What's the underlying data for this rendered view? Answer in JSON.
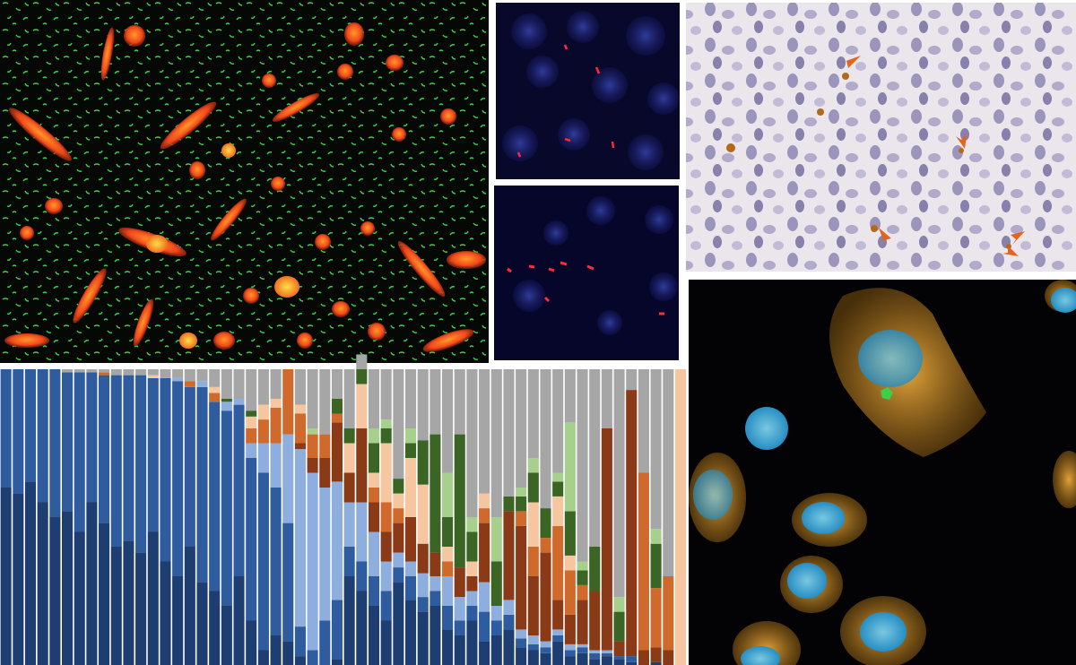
{
  "chart_data": {
    "type": "stacked-bar",
    "categories": [
      null,
      null,
      null,
      null,
      null,
      null,
      null,
      null,
      null,
      null,
      null,
      null,
      null,
      null,
      null,
      null,
      null,
      null,
      null,
      null,
      null,
      null,
      null,
      null,
      null,
      null,
      null,
      null,
      null,
      null,
      null,
      null,
      null,
      null,
      null,
      null,
      null,
      null,
      null,
      null,
      null,
      null,
      null,
      null,
      null,
      null,
      null,
      null,
      null,
      null,
      null,
      null,
      null,
      null,
      null,
      null
    ],
    "ylim": [
      0,
      100
    ],
    "series": [
      {
        "color": "#1e3d70",
        "values": [
          60,
          58,
          62,
          55,
          50,
          52,
          45,
          55,
          48,
          40,
          42,
          38,
          45,
          35,
          30,
          40,
          28,
          25,
          20,
          30,
          15,
          5,
          10,
          8,
          3,
          0,
          0,
          2,
          30,
          25,
          20,
          15,
          28,
          22,
          18,
          20,
          12,
          10,
          15,
          8,
          10,
          12,
          6,
          5,
          4,
          8,
          3,
          4,
          2,
          3,
          2,
          1,
          0,
          1,
          0,
          0
        ]
      },
      {
        "color": "#2f5c9e",
        "values": [
          40,
          42,
          38,
          45,
          50,
          47,
          54,
          44,
          50,
          58,
          56,
          60,
          52,
          62,
          66,
          54,
          66,
          64,
          66,
          58,
          55,
          60,
          50,
          40,
          10,
          5,
          15,
          20,
          10,
          10,
          10,
          10,
          5,
          8,
          5,
          5,
          8,
          5,
          5,
          10,
          5,
          5,
          3,
          2,
          2,
          2,
          2,
          2,
          2,
          1,
          1,
          2,
          0,
          0,
          0,
          0
        ]
      },
      {
        "color": "#8eaedd",
        "values": [
          0,
          0,
          0,
          0,
          0,
          0,
          0,
          0,
          0,
          0,
          0,
          0,
          0,
          0,
          1,
          0,
          2,
          0,
          3,
          2,
          5,
          10,
          15,
          30,
          60,
          60,
          45,
          40,
          15,
          20,
          15,
          10,
          5,
          5,
          8,
          5,
          10,
          8,
          5,
          10,
          5,
          5,
          3,
          3,
          2,
          2,
          2,
          1,
          1,
          1,
          0,
          0,
          0,
          0,
          0,
          0
        ]
      },
      {
        "color": "#8a3a16",
        "values": [
          0,
          0,
          0,
          0,
          0,
          0,
          0,
          0,
          0,
          0,
          0,
          0,
          0,
          0,
          0,
          0,
          0,
          0,
          0,
          0,
          0,
          0,
          0,
          0,
          2,
          5,
          10,
          20,
          10,
          25,
          10,
          10,
          10,
          15,
          10,
          8,
          0,
          10,
          5,
          20,
          0,
          30,
          35,
          20,
          30,
          10,
          10,
          15,
          20,
          75,
          5,
          90,
          5,
          5,
          5,
          0
        ]
      },
      {
        "color": "#d06a2c",
        "values": [
          0,
          0,
          0,
          0,
          0,
          0,
          0,
          0,
          1,
          0,
          0,
          0,
          0,
          0,
          0,
          2,
          0,
          3,
          0,
          0,
          5,
          8,
          12,
          22,
          10,
          8,
          8,
          3,
          0,
          0,
          5,
          10,
          5,
          0,
          0,
          0,
          5,
          0,
          0,
          5,
          0,
          0,
          5,
          10,
          5,
          25,
          15,
          5,
          0,
          0,
          0,
          0,
          60,
          20,
          25,
          0
        ]
      },
      {
        "color": "#f5c6a0",
        "values": [
          0,
          0,
          0,
          0,
          0,
          0,
          0,
          0,
          0,
          0,
          0,
          0,
          1,
          0,
          0,
          0,
          0,
          2,
          0,
          0,
          4,
          5,
          3,
          0,
          3,
          0,
          0,
          0,
          10,
          15,
          5,
          20,
          5,
          20,
          20,
          0,
          5,
          0,
          5,
          5,
          0,
          0,
          0,
          15,
          0,
          10,
          5,
          0,
          0,
          0,
          0,
          0,
          0,
          0,
          0,
          100
        ]
      },
      {
        "color": "#3b6524",
        "values": [
          0,
          0,
          0,
          0,
          0,
          0,
          0,
          0,
          0,
          0,
          0,
          0,
          0,
          0,
          0,
          0,
          0,
          0,
          1,
          0,
          2,
          0,
          0,
          0,
          0,
          0,
          0,
          5,
          5,
          5,
          10,
          5,
          5,
          5,
          15,
          40,
          10,
          45,
          10,
          0,
          15,
          5,
          5,
          10,
          10,
          5,
          15,
          5,
          15,
          0,
          10,
          0,
          0,
          15,
          0,
          0
        ]
      },
      {
        "color": "#a8d08d",
        "values": [
          0,
          0,
          0,
          0,
          0,
          0,
          0,
          0,
          0,
          0,
          0,
          0,
          0,
          0,
          0,
          0,
          0,
          0,
          0,
          0,
          0,
          0,
          0,
          0,
          0,
          2,
          0,
          0,
          0,
          0,
          5,
          3,
          0,
          5,
          0,
          0,
          15,
          0,
          5,
          0,
          15,
          0,
          3,
          5,
          0,
          3,
          30,
          3,
          0,
          0,
          5,
          0,
          0,
          5,
          0,
          0
        ]
      },
      {
        "color": "#a6a6a6",
        "values": [
          0,
          0,
          0,
          0,
          0,
          1,
          1,
          1,
          1,
          2,
          2,
          2,
          2,
          3,
          3,
          4,
          4,
          6,
          10,
          10,
          14,
          12,
          10,
          0,
          12,
          20,
          22,
          10,
          20,
          5,
          20,
          17,
          37,
          20,
          24,
          22,
          35,
          22,
          50,
          42,
          50,
          43,
          40,
          30,
          47,
          35,
          18,
          65,
          60,
          20,
          77,
          7,
          35,
          54,
          70,
          0
        ]
      }
    ]
  }
}
